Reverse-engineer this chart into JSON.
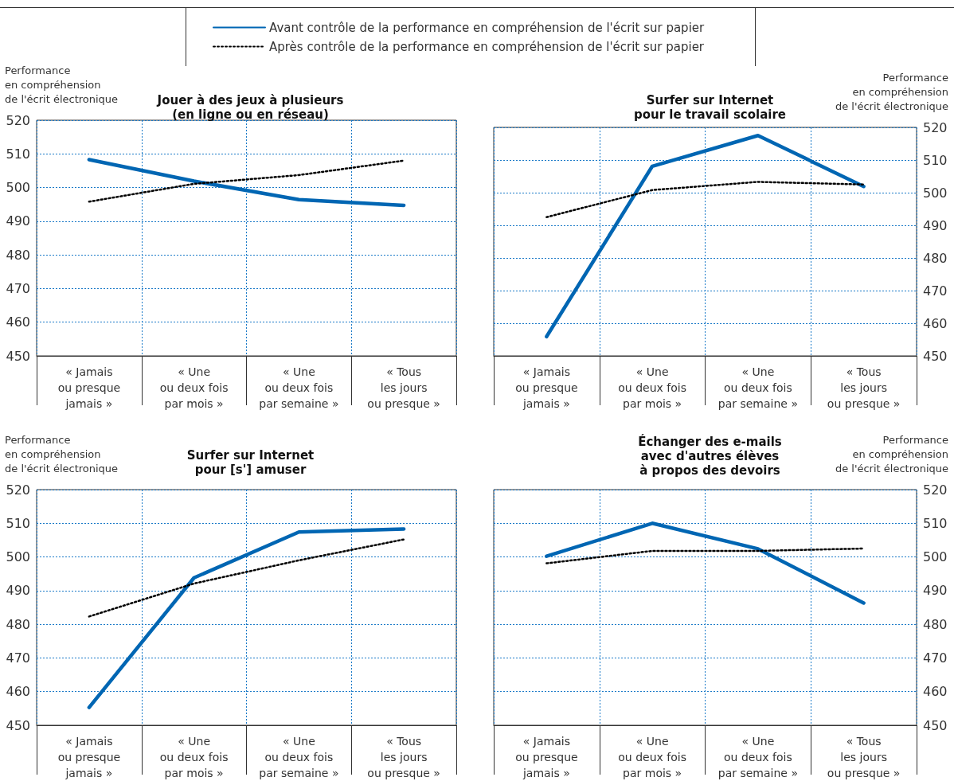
{
  "chart_data": [
    {
      "type": "line",
      "title": "Jouer à des jeux à plusieurs\n(en ligne ou en réseau)",
      "ylabel": "Performance\nen compréhension\nde l'écrit électronique",
      "categories": [
        "« Jamais\nou presque\njamais »",
        "« Une\nou deux fois\npar mois »",
        "« Une\nou deux fois\npar semaine »",
        "« Tous\nles jours\nou presque »"
      ],
      "series": [
        {
          "name": "Avant contrôle de la performance en compréhension de l'écrit sur papier",
          "color": "#0066b3",
          "line_style": "solid",
          "values": [
            508.3,
            501.9,
            496.4,
            494.7
          ]
        },
        {
          "name": "Après contrôle de la performance en compréhension de l'écrit sur papier",
          "color": "#000000",
          "line_style": "dotted",
          "values": [
            495.8,
            501.1,
            503.7,
            508
          ]
        }
      ],
      "ylim": [
        450,
        520
      ],
      "yticks": [
        450,
        460,
        470,
        480,
        490,
        500,
        510,
        520
      ],
      "grid": true,
      "legend": "top"
    },
    {
      "type": "line",
      "title": "Surfer sur Internet\npour le travail scolaire",
      "y2label": "Performance\nen compréhension\nde l'écrit électronique",
      "categories": [
        "« Jamais\nou presque\njamais »",
        "« Une\nou deux fois\npar mois »",
        "« Une\nou deux fois\npar semaine »",
        "« Tous\nles jours\nou presque »"
      ],
      "series": [
        {
          "color": "#0066b3",
          "line_style": "solid",
          "axis": "y2",
          "values": [
            455.9,
            508.1,
            517.5,
            501.9
          ]
        },
        {
          "color": "#000000",
          "line_style": "dotted",
          "axis": "y2",
          "values": [
            492.5,
            500.8,
            503.3,
            502.5
          ]
        }
      ],
      "y2lim": [
        450,
        520
      ],
      "y2ticks": [
        450,
        460,
        470,
        480,
        490,
        500,
        510,
        520
      ],
      "grid": true
    },
    {
      "type": "line",
      "title": "Surfer sur Internet\npour [s'] amuser",
      "ylabel": "Performance\nen compréhension\nde l'écrit électronique",
      "categories": [
        "« Jamais\nou presque\njamais »",
        "« Une\nou deux fois\npar mois »",
        "« Une\nou deux fois\npar semaine »",
        "« Tous\nles jours\nou presque »"
      ],
      "series": [
        {
          "color": "#0066b3",
          "line_style": "solid",
          "values": [
            455.3,
            493.8,
            507.4,
            508.3
          ]
        },
        {
          "color": "#000000",
          "line_style": "dotted",
          "values": [
            482.3,
            492.1,
            499.0,
            505.2
          ]
        }
      ],
      "ylim": [
        450,
        520
      ],
      "yticks": [
        450,
        460,
        470,
        480,
        490,
        500,
        510,
        520
      ],
      "grid": true
    },
    {
      "type": "line",
      "title": "Échanger des e-mails\navec d'autres élèves\nà propos des devoirs",
      "y2label": "Performance\nen compréhension\nde l'écrit électronique",
      "categories": [
        "« Jamais\nou presque\njamais »",
        "« Une\nou deux fois\npar mois »",
        "« Une\nou deux fois\npar semaine »",
        "« Tous\nles jours\nou presque »"
      ],
      "series": [
        {
          "color": "#0066b3",
          "line_style": "solid",
          "axis": "y2",
          "values": [
            500.2,
            510.0,
            502.4,
            486.3
          ]
        },
        {
          "color": "#000000",
          "line_style": "dotted",
          "axis": "y2",
          "values": [
            498.1,
            501.8,
            501.8,
            502.5
          ]
        }
      ],
      "y2lim": [
        450,
        520
      ],
      "y2ticks": [
        450,
        460,
        470,
        480,
        490,
        500,
        510,
        520
      ],
      "grid": true
    }
  ]
}
